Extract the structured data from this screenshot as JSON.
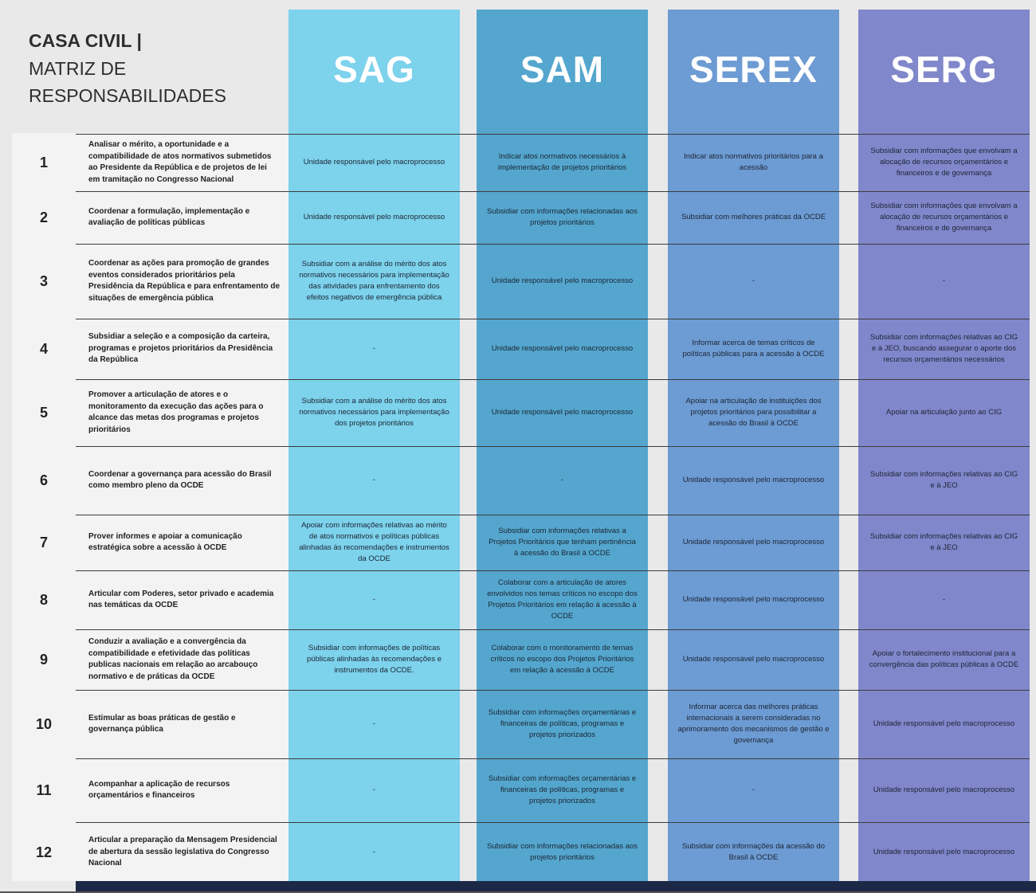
{
  "title": {
    "line1": "CASA CIVIL |",
    "line2": "MATRIZ DE",
    "line3": "RESPONSABILIDADES"
  },
  "columns": [
    {
      "key": "sag",
      "label": "SAG",
      "color": "#7dd2ec"
    },
    {
      "key": "sam",
      "label": "SAM",
      "color": "#54a6ce"
    },
    {
      "key": "serex",
      "label": "SEREX",
      "color": "#6d9bd3"
    },
    {
      "key": "serg",
      "label": "SERG",
      "color": "#8187cb"
    }
  ],
  "rows": [
    {
      "num": "1",
      "desc": "Analisar o mérito, a oportunidade e a compatibilidade de atos normativos submetidos ao Presidente da República e de projetos de lei em tramitação no Congresso Nacional",
      "cells": [
        "Unidade responsável pelo macroprocesso",
        "Indicar atos normativos necessários à implementação de projetos prioritários",
        "Indicar atos normativos prioritários para a acessão",
        "Subsidiar com informações que envolvam a alocação de recursos orçamentários e financeiros e de governança"
      ]
    },
    {
      "num": "2",
      "desc": "Coordenar a formulação, implementação e avaliação de políticas públicas",
      "cells": [
        "Unidade responsável pelo macroprocesso",
        "Subsidiar com informações relacionadas aos projetos prioritários",
        "Subsidiar com melhores práticas da OCDE",
        "Subsidiar com informações que envolvam a alocação de recursos orçamentários e financeiros e de governança"
      ]
    },
    {
      "num": "3",
      "desc": "Coordenar as ações para promoção de grandes eventos considerados prioritários pela Presidência da República e para enfrentamento de situações de emergência pública",
      "cells": [
        "Subsidiar com a análise do mérito dos atos normativos necessários para implementação das atividades para enfrentamento dos efeitos negativos de emergência pública",
        "Unidade responsável pelo macroprocesso",
        "-",
        "-"
      ]
    },
    {
      "num": "4",
      "desc": "Subsidiar a seleção e a composição da carteira, programas e projetos prioritários da Presidência da República",
      "cells": [
        "-",
        "Unidade responsável pelo macroprocesso",
        "Informar acerca de temas críticos de políticas públicas para a acessão à OCDE",
        "Subsidiar com informações relativas ao CIG e à JEO, buscando assegurar o aporte dos recursos orçamentários necessários"
      ]
    },
    {
      "num": "5",
      "desc": "Promover a articulação de atores e o monitoramento da execução das ações para o alcance das metas dos programas e projetos prioritários",
      "cells": [
        "Subsidiar com a análise do mérito dos atos normativos necessários para implementação dos projetos prioritários",
        "Unidade responsável pelo macroprocesso",
        "Apoiar na articulação de instituições dos projetos prioritários para possibilitar a acessão do Brasil à OCDE",
        "Apoiar na articulação junto ao CIG"
      ]
    },
    {
      "num": "6",
      "desc": "Coordenar a governança para acessão do Brasil como membro pleno da OCDE",
      "cells": [
        "-",
        "-",
        "Unidade responsável pelo macroprocesso",
        "Subsidiar com informações relativas ao CIG e à JEO"
      ]
    },
    {
      "num": "7",
      "desc": "Prover informes e apoiar a comunicação estratégica sobre a acessão à OCDE",
      "cells": [
        "Apoiar com informações relativas ao mérito de atos normativos e políticas públicas alinhadas às recomendações e instrumentos da OCDE",
        "Subsidiar com informações relativas a Projetos Prioritários que tenham pertinência à acessão do Brasil à OCDE",
        "Unidade responsável pelo macroprocesso",
        "Subsidiar com informações relativas ao CIG e à JEO"
      ]
    },
    {
      "num": "8",
      "desc": "Articular com Poderes, setor privado e academia nas temáticas da OCDE",
      "cells": [
        "-",
        "Colaborar com a articulação de atores envolvidos nos temas críticos no escopo dos Projetos Prioritários em relação à acessão à OCDE",
        "Unidade responsável pelo macroprocesso",
        "-"
      ]
    },
    {
      "num": "9",
      "desc": "Conduzir a avaliação e a convergência da compatibilidade e efetividade das políticas publicas nacionais em relação ao arcabouço normativo e de práticas da OCDE",
      "cells": [
        "Subsidiar com informações de políticas públicas alinhadas às recomendações e instrumentos da OCDE.",
        "Colaborar com o monitoramento de temas críticos no escopo dos Projetos Prioritários em relação à acessão à OCDE",
        "Unidade responsável pelo macroprocesso",
        "Apoiar o fortalecimento institucional para a convergência das políticas públicas à OCDE"
      ]
    },
    {
      "num": "10",
      "desc": "Estimular as boas práticas de gestão e governança pública",
      "cells": [
        "-",
        "Subsidiar com informações orçamentárias e financeiras de políticas, programas e projetos priorizados",
        "Informar acerca das melhores práticas internacionais a serem consideradas no aprimoramento dos mecanismos de gestão e governança",
        "Unidade responsável pelo macroprocesso"
      ]
    },
    {
      "num": "11",
      "desc": "Acompanhar a aplicação de recursos orçamentários e financeiros",
      "cells": [
        "-",
        "Subsidiar com informações orçamentárias e financeiras de políticas, programas e projetos priorizados",
        "-",
        "Unidade responsável pelo macroprocesso"
      ]
    },
    {
      "num": "12",
      "desc": "Articular a preparação da Mensagem Presidencial de abertura da sessão legislativa do Congresso Nacional",
      "cells": [
        "-",
        "Subsidiar com informações relacionadas aos projetos prioritários",
        "Subsidiar com informações da acessão do Brasil à OCDE",
        "Unidade responsável pelo macroprocesso"
      ]
    }
  ]
}
